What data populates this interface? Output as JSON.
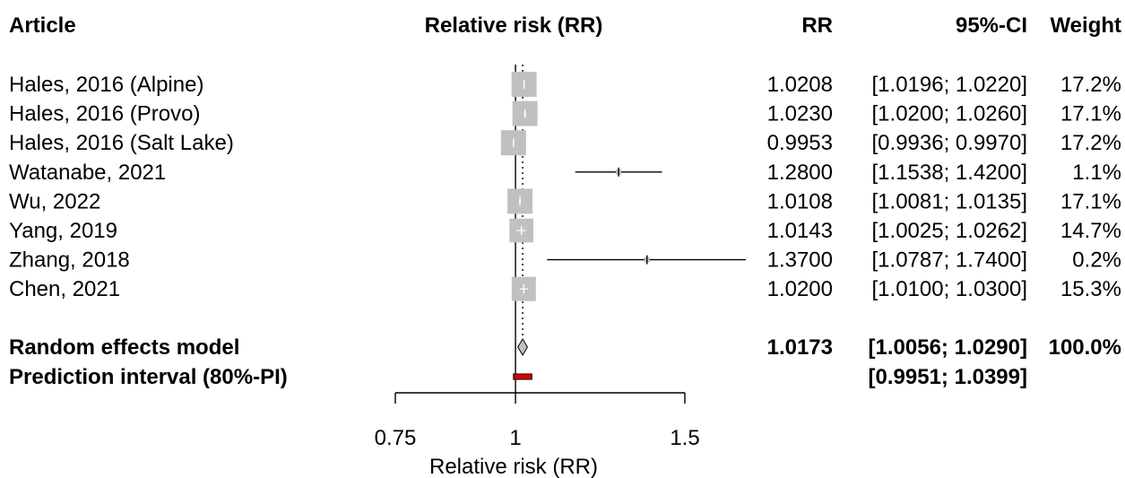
{
  "header": {
    "article": "Article",
    "plot_title": "Relative risk (RR)",
    "rr": "RR",
    "ci": "95%-CI",
    "weight": "Weight"
  },
  "chart_data": {
    "type": "forest",
    "scale": "log",
    "xlim": [
      0.75,
      1.5
    ],
    "reference_line": 1,
    "xticks": [
      "0.75",
      "1",
      "1.5"
    ],
    "xlabel": "Relative risk (RR)",
    "studies": [
      {
        "article": "Hales, 2016 (Alpine)",
        "rr": 1.0208,
        "lower": 1.0196,
        "upper": 1.022,
        "rr_label": "1.0208",
        "ci_label": "[1.0196; 1.0220]",
        "weight": 17.2,
        "weight_label": "17.2%"
      },
      {
        "article": "Hales, 2016 (Provo)",
        "rr": 1.023,
        "lower": 1.02,
        "upper": 1.026,
        "rr_label": "1.0230",
        "ci_label": "[1.0200; 1.0260]",
        "weight": 17.1,
        "weight_label": "17.1%"
      },
      {
        "article": "Hales, 2016 (Salt Lake)",
        "rr": 0.9953,
        "lower": 0.9936,
        "upper": 0.997,
        "rr_label": "0.9953",
        "ci_label": "[0.9936; 0.9970]",
        "weight": 17.2,
        "weight_label": "17.2%"
      },
      {
        "article": "Watanabe, 2021",
        "rr": 1.28,
        "lower": 1.1538,
        "upper": 1.42,
        "rr_label": "1.2800",
        "ci_label": "[1.1538; 1.4200]",
        "weight": 1.1,
        "weight_label": "1.1%"
      },
      {
        "article": "Wu, 2022",
        "rr": 1.0108,
        "lower": 1.0081,
        "upper": 1.0135,
        "rr_label": "1.0108",
        "ci_label": "[1.0081; 1.0135]",
        "weight": 17.1,
        "weight_label": "17.1%"
      },
      {
        "article": "Yang, 2019",
        "rr": 1.0143,
        "lower": 1.0025,
        "upper": 1.0262,
        "rr_label": "1.0143",
        "ci_label": "[1.0025; 1.0262]",
        "weight": 14.7,
        "weight_label": "14.7%"
      },
      {
        "article": "Zhang, 2018",
        "rr": 1.37,
        "lower": 1.0787,
        "upper": 1.74,
        "rr_label": "1.3700",
        "ci_label": "[1.0787; 1.7400]",
        "weight": 0.2,
        "weight_label": "0.2%"
      },
      {
        "article": "Chen, 2021",
        "rr": 1.02,
        "lower": 1.01,
        "upper": 1.03,
        "rr_label": "1.0200",
        "ci_label": "[1.0100; 1.0300]",
        "weight": 15.3,
        "weight_label": "15.3%"
      }
    ],
    "pooled": {
      "label": "Random effects model",
      "rr": 1.0173,
      "lower": 1.0056,
      "upper": 1.029,
      "rr_label": "1.0173",
      "ci_label": "[1.0056; 1.0290]",
      "weight_label": "100.0%"
    },
    "prediction_interval": {
      "label": "Prediction interval (80%-PI)",
      "lower": 0.9951,
      "upper": 1.0399,
      "ci_label": "[0.9951; 1.0399]"
    },
    "colors": {
      "study_box": "#c0c0c0",
      "diamond_fill": "#c0c0c0",
      "prediction_bar": "#e00000",
      "line": "#000000"
    }
  }
}
